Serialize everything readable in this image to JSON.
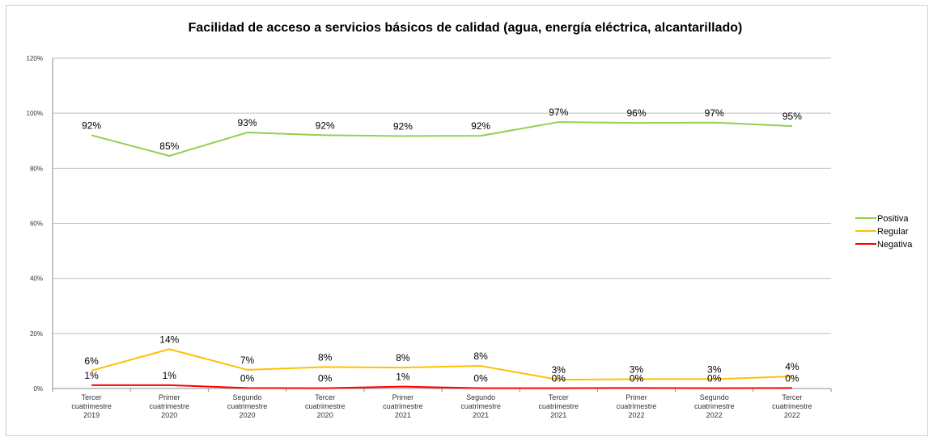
{
  "chart_data": {
    "type": "line",
    "title": "Facilidad de acceso a servicios básicos de calidad (agua, energía eléctrica, alcantarillado)",
    "categories": [
      [
        "Tercer",
        "cuatrimestre",
        "2019"
      ],
      [
        "Primer",
        "cuatrimestre",
        "2020"
      ],
      [
        "Segundo",
        "cuatrimestre",
        "2020"
      ],
      [
        "Tercer",
        "cuatrimestre",
        "2020"
      ],
      [
        "Primer",
        "cuatrimestre",
        "2021"
      ],
      [
        "Segundo",
        "cuatrimestre",
        "2021"
      ],
      [
        "Tercer",
        "cuatrimestre",
        "2021"
      ],
      [
        "Primer",
        "cuatrimestre",
        "2022"
      ],
      [
        "Segundo",
        "cuatrimestre",
        "2022"
      ],
      [
        "Tercer",
        "cuatrimestre",
        "2022"
      ]
    ],
    "series": [
      {
        "name": "Positiva",
        "color": "#92d050",
        "values": [
          92,
          84.5,
          93,
          92,
          91.7,
          91.8,
          96.8,
          96.5,
          96.6,
          95.3
        ],
        "labels": [
          "92%",
          "85%",
          "93%",
          "92%",
          "92%",
          "92%",
          "97%",
          "96%",
          "97%",
          "95%"
        ]
      },
      {
        "name": "Regular",
        "color": "#ffc000",
        "values": [
          6.5,
          14.3,
          6.8,
          7.8,
          7.6,
          8.2,
          3.2,
          3.4,
          3.4,
          4.4
        ],
        "labels": [
          "6%",
          "14%",
          "7%",
          "8%",
          "8%",
          "8%",
          "3%",
          "3%",
          "3%",
          "4%"
        ]
      },
      {
        "name": "Negativa",
        "color": "#ff0000",
        "values": [
          1.2,
          1.2,
          0.2,
          0.1,
          0.7,
          0.1,
          0.1,
          0.2,
          0.1,
          0.2
        ],
        "labels": [
          "1%",
          "1%",
          "0%",
          "0%",
          "1%",
          "0%",
          "0%",
          "0%",
          "0%",
          "0%"
        ]
      }
    ],
    "yticks": [
      "0%",
      "20%",
      "40%",
      "60%",
      "80%",
      "100%",
      "120%"
    ],
    "ylim": [
      0,
      120
    ],
    "grid": true,
    "legend_position": "right"
  }
}
